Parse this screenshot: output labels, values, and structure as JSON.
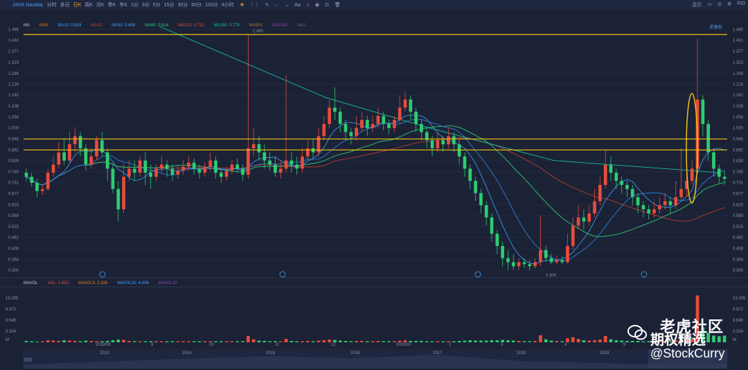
{
  "toolbar": {
    "ticker": "JAKK.Nasdaq",
    "timeframes": [
      "分时",
      "多日",
      "日K",
      "周K",
      "月K",
      "季K",
      "年K",
      "1分",
      "3分",
      "5分",
      "15分",
      "30分",
      "60分",
      "120分",
      "4小时"
    ],
    "active_timeframe": "日K",
    "right_label": "显示",
    "fio": "FIO"
  },
  "ma_legend": [
    {
      "label": "MA",
      "color": "#c8cdd8"
    },
    {
      "label": "MA5",
      "color": "#e67e22"
    },
    {
      "label": "MA10: 0.824",
      "color": "#3fa3ff"
    },
    {
      "label": "MA20",
      "color": "#c0392b"
    },
    {
      "label": "MA30: 0.689",
      "color": "#3fa3ff"
    },
    {
      "label": "MA60: 0.614",
      "color": "#2ecc71"
    },
    {
      "label": "MA120: 0.713",
      "color": "#e74c3c"
    },
    {
      "label": "MA250: 0.779",
      "color": "#1abc9c"
    },
    {
      "label": "MA500",
      "color": "#b07a2a"
    },
    {
      "label": "MA1000",
      "color": "#8e44ad"
    },
    {
      "label": "MA1",
      "color": "#5d6d7e"
    }
  ],
  "fq_label": "前复权",
  "vol_legend": [
    {
      "label": "MAVOL",
      "color": "#c8cdd8"
    },
    {
      "label": "VOL: 1.993",
      "color": "#e74c3c"
    },
    {
      "label": "MAVOL5: 3.338",
      "color": "#e67e22"
    },
    {
      "label": "MAVOL10: 4.008",
      "color": "#3fa3ff"
    },
    {
      "label": "MAVOL20",
      "color": "#8e44ad"
    }
  ],
  "price_ticks": [
    "1.485",
    "1.431",
    "1.377",
    "1.323",
    "1.269",
    "1.216",
    "1.162",
    "1.108",
    "1.054",
    "1.000",
    "0.946",
    "0.892",
    "0.839",
    "0.785",
    "0.731",
    "0.677",
    "0.623",
    "0.569",
    "0.515",
    "0.462",
    "0.408",
    "0.354",
    "0.300"
  ],
  "vol_ticks": [
    "13.295",
    "9.972",
    "6.648",
    "3.324",
    "M"
  ],
  "annotations": {
    "high": "1.460",
    "low": "0.300"
  },
  "date_axis": [
    "2019/08",
    "9",
    "10",
    "11",
    "12",
    "2020/01",
    "2",
    "3",
    "4",
    "5"
  ],
  "nav_axis": [
    "2013",
    "2014",
    "2015",
    "2016",
    "2017",
    "2018",
    "2019"
  ],
  "colors": {
    "up": "#e74c3c",
    "down": "#2ecc71",
    "hline": "#f1c40f",
    "bg": "#1b2236"
  },
  "chart_data": {
    "type": "candlestick",
    "hlines": [
      1.46,
      0.946,
      0.892
    ],
    "ylim": [
      0.28,
      1.5
    ],
    "candles": [
      [
        0.78,
        0.76,
        0.8,
        0.74
      ],
      [
        0.76,
        0.73,
        0.78,
        0.71
      ],
      [
        0.73,
        0.69,
        0.75,
        0.66
      ],
      [
        0.69,
        0.7,
        0.72,
        0.67
      ],
      [
        0.7,
        0.78,
        0.8,
        0.69
      ],
      [
        0.78,
        0.82,
        0.86,
        0.76
      ],
      [
        0.82,
        0.88,
        0.93,
        0.8
      ],
      [
        0.88,
        0.84,
        0.95,
        0.82
      ],
      [
        0.84,
        0.92,
        0.98,
        0.83
      ],
      [
        0.92,
        0.96,
        1.0,
        0.88
      ],
      [
        0.96,
        0.9,
        0.98,
        0.86
      ],
      [
        0.9,
        0.82,
        0.92,
        0.79
      ],
      [
        0.82,
        0.86,
        0.9,
        0.8
      ],
      [
        0.86,
        0.94,
        0.96,
        0.84
      ],
      [
        0.94,
        0.88,
        0.98,
        0.86
      ],
      [
        0.88,
        0.8,
        0.9,
        0.74
      ],
      [
        0.8,
        0.7,
        0.82,
        0.68
      ],
      [
        0.7,
        0.6,
        0.74,
        0.54
      ],
      [
        0.6,
        0.76,
        0.82,
        0.58
      ],
      [
        0.76,
        0.8,
        0.84,
        0.74
      ],
      [
        0.8,
        0.78,
        0.84,
        0.74
      ],
      [
        0.78,
        0.84,
        0.86,
        0.76
      ],
      [
        0.84,
        0.78,
        0.88,
        0.72
      ],
      [
        0.78,
        0.76,
        0.82,
        0.7
      ],
      [
        0.76,
        0.8,
        0.82,
        0.74
      ],
      [
        0.8,
        0.82,
        0.86,
        0.78
      ],
      [
        0.82,
        0.8,
        0.84,
        0.76
      ],
      [
        0.8,
        0.77,
        0.82,
        0.74
      ],
      [
        0.77,
        0.79,
        0.82,
        0.75
      ],
      [
        0.79,
        0.81,
        0.84,
        0.77
      ],
      [
        0.81,
        0.83,
        0.86,
        0.79
      ],
      [
        0.83,
        0.8,
        0.85,
        0.77
      ],
      [
        0.8,
        0.78,
        0.82,
        0.75
      ],
      [
        0.78,
        0.81,
        0.83,
        0.76
      ],
      [
        0.81,
        0.84,
        0.88,
        0.79
      ],
      [
        0.84,
        0.78,
        0.86,
        0.75
      ],
      [
        0.78,
        0.76,
        0.8,
        0.73
      ],
      [
        0.76,
        0.79,
        0.81,
        0.74
      ],
      [
        0.79,
        0.82,
        0.84,
        0.77
      ],
      [
        0.82,
        0.8,
        0.85,
        0.78
      ],
      [
        0.8,
        0.77,
        0.82,
        0.74
      ],
      [
        0.77,
        0.9,
        1.46,
        0.75
      ],
      [
        0.9,
        0.92,
        1.0,
        0.86
      ],
      [
        0.92,
        0.88,
        0.96,
        0.84
      ],
      [
        0.88,
        0.84,
        0.92,
        0.8
      ],
      [
        0.84,
        0.82,
        0.88,
        0.79
      ],
      [
        0.82,
        0.78,
        0.86,
        0.76
      ],
      [
        0.78,
        0.8,
        0.84,
        0.75
      ],
      [
        0.8,
        0.84,
        1.26,
        0.78
      ],
      [
        0.84,
        0.82,
        0.88,
        0.78
      ],
      [
        0.82,
        0.8,
        0.86,
        0.77
      ],
      [
        0.8,
        0.86,
        0.9,
        0.78
      ],
      [
        0.86,
        0.9,
        0.94,
        0.84
      ],
      [
        0.9,
        0.88,
        0.95,
        0.85
      ],
      [
        0.88,
        0.96,
        1.0,
        0.86
      ],
      [
        0.96,
        1.02,
        1.06,
        0.94
      ],
      [
        1.02,
        1.1,
        1.14,
        1.0
      ],
      [
        1.1,
        1.08,
        1.2,
        1.04
      ],
      [
        1.08,
        1.02,
        1.1,
        0.98
      ],
      [
        1.02,
        0.98,
        1.04,
        0.94
      ],
      [
        0.98,
        0.96,
        1.0,
        0.92
      ],
      [
        0.96,
        1.0,
        1.06,
        0.94
      ],
      [
        1.0,
        1.04,
        1.08,
        0.98
      ],
      [
        1.04,
        1.0,
        1.06,
        0.96
      ],
      [
        1.0,
        1.02,
        1.06,
        0.98
      ],
      [
        1.02,
        1.06,
        1.1,
        1.0
      ],
      [
        1.06,
        1.02,
        1.08,
        0.99
      ],
      [
        1.02,
        1.0,
        1.04,
        0.97
      ],
      [
        1.0,
        1.04,
        1.06,
        0.98
      ],
      [
        1.04,
        1.1,
        1.16,
        1.02
      ],
      [
        1.1,
        1.14,
        1.18,
        1.08
      ],
      [
        1.14,
        1.08,
        1.16,
        1.04
      ],
      [
        1.08,
        1.02,
        1.1,
        0.98
      ],
      [
        1.02,
        0.98,
        1.04,
        0.94
      ],
      [
        0.98,
        0.94,
        1.0,
        0.9
      ],
      [
        0.94,
        0.9,
        0.96,
        0.86
      ],
      [
        0.9,
        0.94,
        0.98,
        0.88
      ],
      [
        0.94,
        0.92,
        0.96,
        0.88
      ],
      [
        0.92,
        0.96,
        1.0,
        0.9
      ],
      [
        0.96,
        0.92,
        0.98,
        0.88
      ],
      [
        0.92,
        0.86,
        0.94,
        0.82
      ],
      [
        0.86,
        0.8,
        0.88,
        0.76
      ],
      [
        0.8,
        0.74,
        0.82,
        0.7
      ],
      [
        0.74,
        0.68,
        0.76,
        0.64
      ],
      [
        0.68,
        0.62,
        0.7,
        0.58
      ],
      [
        0.62,
        0.56,
        0.64,
        0.52
      ],
      [
        0.56,
        0.48,
        0.58,
        0.44
      ],
      [
        0.48,
        0.42,
        0.5,
        0.38
      ],
      [
        0.42,
        0.36,
        0.44,
        0.32
      ],
      [
        0.36,
        0.34,
        0.4,
        0.3
      ],
      [
        0.34,
        0.32,
        0.38,
        0.3
      ],
      [
        0.32,
        0.34,
        0.36,
        0.3
      ],
      [
        0.34,
        0.33,
        0.36,
        0.31
      ],
      [
        0.33,
        0.32,
        0.35,
        0.3
      ],
      [
        0.32,
        0.34,
        0.36,
        0.31
      ],
      [
        0.34,
        0.4,
        0.57,
        0.32
      ],
      [
        0.4,
        0.36,
        0.42,
        0.34
      ],
      [
        0.36,
        0.34,
        0.38,
        0.33
      ],
      [
        0.34,
        0.35,
        0.37,
        0.33
      ],
      [
        0.35,
        0.34,
        0.37,
        0.33
      ],
      [
        0.34,
        0.42,
        0.48,
        0.33
      ],
      [
        0.42,
        0.52,
        0.56,
        0.4
      ],
      [
        0.52,
        0.56,
        0.62,
        0.5
      ],
      [
        0.56,
        0.54,
        0.6,
        0.5
      ],
      [
        0.54,
        0.58,
        0.62,
        0.52
      ],
      [
        0.58,
        0.64,
        0.7,
        0.56
      ],
      [
        0.64,
        0.72,
        0.76,
        0.62
      ],
      [
        0.72,
        0.82,
        0.89,
        0.7
      ],
      [
        0.82,
        0.78,
        0.86,
        0.74
      ],
      [
        0.78,
        0.74,
        0.8,
        0.7
      ],
      [
        0.74,
        0.72,
        0.76,
        0.68
      ],
      [
        0.72,
        0.7,
        0.74,
        0.66
      ],
      [
        0.7,
        0.66,
        0.72,
        0.62
      ],
      [
        0.66,
        0.62,
        0.68,
        0.58
      ],
      [
        0.62,
        0.6,
        0.64,
        0.56
      ],
      [
        0.6,
        0.58,
        0.62,
        0.55
      ],
      [
        0.58,
        0.6,
        0.64,
        0.56
      ],
      [
        0.6,
        0.62,
        0.66,
        0.58
      ],
      [
        0.62,
        0.64,
        0.68,
        0.6
      ],
      [
        0.64,
        0.62,
        0.66,
        0.58
      ],
      [
        0.62,
        0.66,
        0.74,
        0.6
      ],
      [
        0.66,
        0.7,
        0.9,
        0.64
      ],
      [
        0.7,
        0.74,
        0.78,
        0.66
      ],
      [
        0.74,
        0.8,
        0.84,
        0.72
      ],
      [
        0.8,
        1.14,
        1.44,
        0.78
      ],
      [
        1.14,
        1.02,
        1.16,
        0.96
      ],
      [
        1.02,
        0.88,
        1.04,
        0.84
      ],
      [
        0.88,
        0.8,
        0.9,
        0.76
      ],
      [
        0.8,
        0.76,
        0.82,
        0.73
      ],
      [
        0.76,
        0.75,
        0.79,
        0.72
      ]
    ],
    "volumes": [
      0.4,
      0.3,
      0.2,
      0.3,
      0.6,
      0.5,
      0.4,
      0.6,
      0.5,
      0.4,
      0.3,
      0.5,
      0.4,
      0.3,
      0.3,
      0.4,
      0.6,
      0.8,
      0.7,
      0.4,
      0.3,
      0.3,
      0.3,
      0.3,
      0.3,
      0.3,
      0.3,
      0.3,
      0.3,
      0.3,
      0.3,
      0.3,
      0.3,
      0.3,
      0.3,
      0.3,
      0.3,
      0.3,
      0.3,
      0.3,
      0.3,
      1.9,
      0.9,
      0.5,
      0.4,
      0.3,
      0.3,
      0.3,
      1.0,
      0.4,
      0.3,
      0.3,
      0.4,
      0.3,
      0.5,
      0.6,
      0.8,
      0.7,
      0.5,
      0.4,
      0.3,
      0.4,
      0.4,
      0.3,
      0.3,
      0.4,
      0.3,
      0.3,
      0.3,
      0.5,
      0.6,
      0.4,
      0.4,
      0.4,
      0.3,
      0.3,
      0.3,
      0.3,
      0.3,
      0.3,
      0.4,
      0.5,
      0.6,
      0.5,
      0.5,
      0.5,
      0.6,
      0.6,
      0.7,
      0.6,
      0.5,
      0.4,
      0.3,
      0.3,
      0.4,
      2.1,
      0.9,
      0.5,
      0.4,
      0.3,
      1.2,
      1.5,
      1.0,
      0.6,
      0.5,
      0.6,
      0.8,
      1.9,
      0.9,
      0.6,
      0.5,
      0.4,
      0.4,
      0.4,
      0.3,
      0.3,
      0.3,
      0.4,
      0.4,
      0.3,
      0.6,
      1.3,
      0.7,
      0.9,
      14.0,
      4.5,
      2.8,
      2.0,
      1.8,
      1.99
    ],
    "vol_ylim": [
      0,
      14.5
    ]
  }
}
